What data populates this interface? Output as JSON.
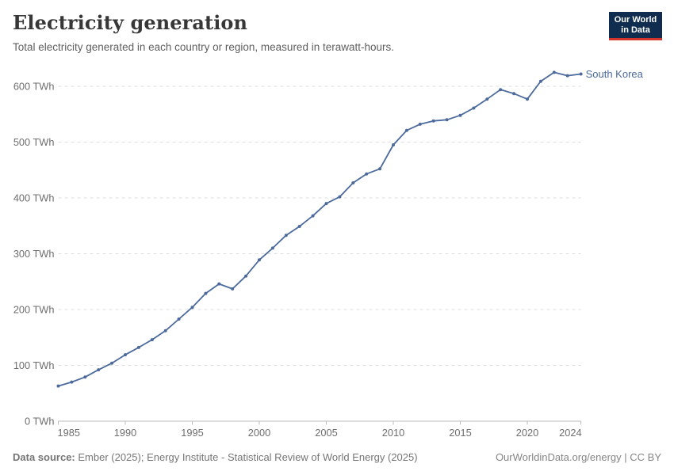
{
  "header": {
    "title": "Electricity generation",
    "subtitle": "Total electricity generated in each country or region, measured in terawatt-hours."
  },
  "logo": {
    "line1": "Our World",
    "line2": "in Data",
    "bg_color": "#102D50",
    "accent_color": "#D3342B",
    "text_color": "#FFFFFF"
  },
  "footer": {
    "source_label": "Data source:",
    "source_text": " Ember (2025); Energy Institute - Statistical Review of World Energy (2025)",
    "link_text": "OurWorldinData.org/energy | CC BY"
  },
  "colors": {
    "line": "#4C6A9C",
    "grid": "#dcdcdc",
    "axis": "#bcbcbc",
    "tick_label": "#6e6e6e"
  },
  "chart_data": {
    "type": "line",
    "title": "Electricity generation",
    "subtitle": "Total electricity generated in each country or region, measured in terawatt-hours.",
    "unit": "TWh",
    "xlabel": "",
    "ylabel": "",
    "xlim": [
      1985,
      2024
    ],
    "ylim": [
      0,
      600
    ],
    "x_ticks": [
      1985,
      1990,
      1995,
      2000,
      2005,
      2010,
      2015,
      2020,
      2024
    ],
    "y_ticks": [
      0,
      100,
      200,
      300,
      400,
      500,
      600
    ],
    "y_tick_suffix": " TWh",
    "grid": "horizontal-dashed",
    "legend": "inline-end-label",
    "series": [
      {
        "name": "South Korea",
        "color": "#4C6A9C",
        "x": [
          1985,
          1986,
          1987,
          1988,
          1989,
          1990,
          1991,
          1992,
          1993,
          1994,
          1995,
          1996,
          1997,
          1998,
          1999,
          2000,
          2001,
          2002,
          2003,
          2004,
          2005,
          2006,
          2007,
          2008,
          2009,
          2010,
          2011,
          2012,
          2013,
          2014,
          2015,
          2016,
          2017,
          2018,
          2019,
          2020,
          2021,
          2022,
          2023,
          2024
        ],
        "values": [
          63,
          70,
          79,
          92,
          104,
          119,
          132,
          146,
          162,
          183,
          204,
          229,
          246,
          237,
          260,
          289,
          310,
          333,
          349,
          368,
          390,
          402,
          427,
          443,
          452,
          495,
          521,
          532,
          538,
          540,
          548,
          561,
          577,
          594,
          587,
          577,
          609,
          625,
          619,
          622
        ]
      }
    ]
  }
}
